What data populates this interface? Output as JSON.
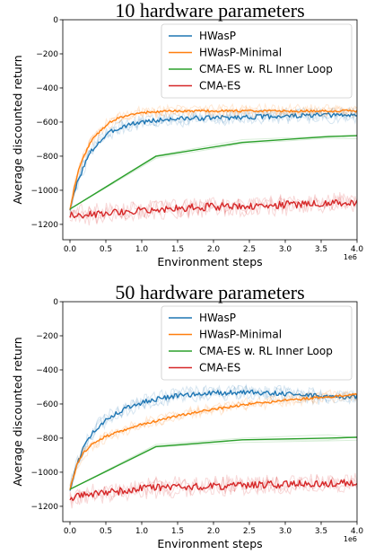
{
  "chart_data": [
    {
      "type": "line",
      "title": "10 hardware parameters",
      "xlabel": "Environment steps",
      "ylabel": "Average discounted return",
      "x_offset_label": "1e6",
      "xlim": [
        -0.1,
        4.0
      ],
      "ylim": [
        -1290,
        0
      ],
      "xticks": [
        "0.0",
        "0.5",
        "1.0",
        "1.5",
        "2.0",
        "2.5",
        "3.0",
        "3.5",
        "4.0"
      ],
      "yticks": [
        "0",
        "−200",
        "−400",
        "−600",
        "−800",
        "−1000",
        "−1200"
      ],
      "legend_position": "upper right",
      "series": [
        {
          "name": "HWasP",
          "color": "#1f77b4",
          "x": [
            0.0,
            0.1,
            0.2,
            0.3,
            0.4,
            0.5,
            0.6,
            0.8,
            1.0,
            1.2,
            1.5,
            2.0,
            2.5,
            3.0,
            3.5,
            4.0
          ],
          "y": [
            -1110,
            -960,
            -850,
            -770,
            -720,
            -680,
            -650,
            -615,
            -600,
            -590,
            -580,
            -575,
            -570,
            -565,
            -560,
            -560
          ]
        },
        {
          "name": "HWasP-Minimal",
          "color": "#ff7f0e",
          "x": [
            0.0,
            0.1,
            0.2,
            0.3,
            0.4,
            0.5,
            0.6,
            0.8,
            1.0,
            1.2,
            1.5,
            2.0,
            2.5,
            3.0,
            3.5,
            4.0
          ],
          "y": [
            -1110,
            -910,
            -790,
            -710,
            -660,
            -620,
            -590,
            -560,
            -545,
            -540,
            -535,
            -535,
            -535,
            -535,
            -535,
            -535
          ]
        },
        {
          "name": "CMA-ES w. RL Inner Loop",
          "color": "#2ca02c",
          "x": [
            0.0,
            1.2,
            2.4,
            3.6,
            4.0
          ],
          "y": [
            -1110,
            -800,
            -720,
            -685,
            -680
          ]
        },
        {
          "name": "CMA-ES",
          "color": "#d62728",
          "x": [
            0.0,
            0.5,
            1.0,
            1.5,
            2.0,
            2.5,
            3.0,
            3.5,
            4.0
          ],
          "y": [
            -1150,
            -1135,
            -1115,
            -1105,
            -1095,
            -1090,
            -1085,
            -1080,
            -1070
          ]
        }
      ]
    },
    {
      "type": "line",
      "title": "50 hardware parameters",
      "xlabel": "Environment steps",
      "ylabel": "Average discounted return",
      "x_offset_label": "1e6",
      "xlim": [
        -0.1,
        4.0
      ],
      "ylim": [
        -1290,
        0
      ],
      "xticks": [
        "0.0",
        "0.5",
        "1.0",
        "1.5",
        "2.0",
        "2.5",
        "3.0",
        "3.5",
        "4.0"
      ],
      "yticks": [
        "0",
        "−200",
        "−400",
        "−600",
        "−800",
        "−1000",
        "−1200"
      ],
      "legend_position": "upper right",
      "series": [
        {
          "name": "HWasP",
          "color": "#1f77b4",
          "x": [
            0.0,
            0.1,
            0.2,
            0.3,
            0.4,
            0.5,
            0.7,
            1.0,
            1.5,
            2.0,
            2.5,
            3.0,
            3.5,
            4.0
          ],
          "y": [
            -1100,
            -950,
            -850,
            -780,
            -730,
            -690,
            -640,
            -590,
            -550,
            -535,
            -530,
            -540,
            -555,
            -560
          ]
        },
        {
          "name": "HWasP-Minimal",
          "color": "#ff7f0e",
          "x": [
            0.0,
            0.1,
            0.2,
            0.3,
            0.5,
            0.7,
            1.0,
            1.5,
            2.0,
            2.5,
            3.0,
            3.5,
            4.0
          ],
          "y": [
            -1100,
            -950,
            -880,
            -840,
            -790,
            -760,
            -720,
            -670,
            -630,
            -600,
            -580,
            -560,
            -545
          ]
        },
        {
          "name": "CMA-ES w. RL Inner Loop",
          "color": "#2ca02c",
          "x": [
            0.0,
            1.2,
            2.4,
            3.6,
            4.0
          ],
          "y": [
            -1100,
            -850,
            -810,
            -800,
            -795
          ]
        },
        {
          "name": "CMA-ES",
          "color": "#d62728",
          "x": [
            0.0,
            0.5,
            1.0,
            1.5,
            2.0,
            2.5,
            3.0,
            3.5,
            4.0
          ],
          "y": [
            -1150,
            -1120,
            -1095,
            -1085,
            -1080,
            -1075,
            -1070,
            -1065,
            -1060
          ]
        }
      ]
    }
  ]
}
